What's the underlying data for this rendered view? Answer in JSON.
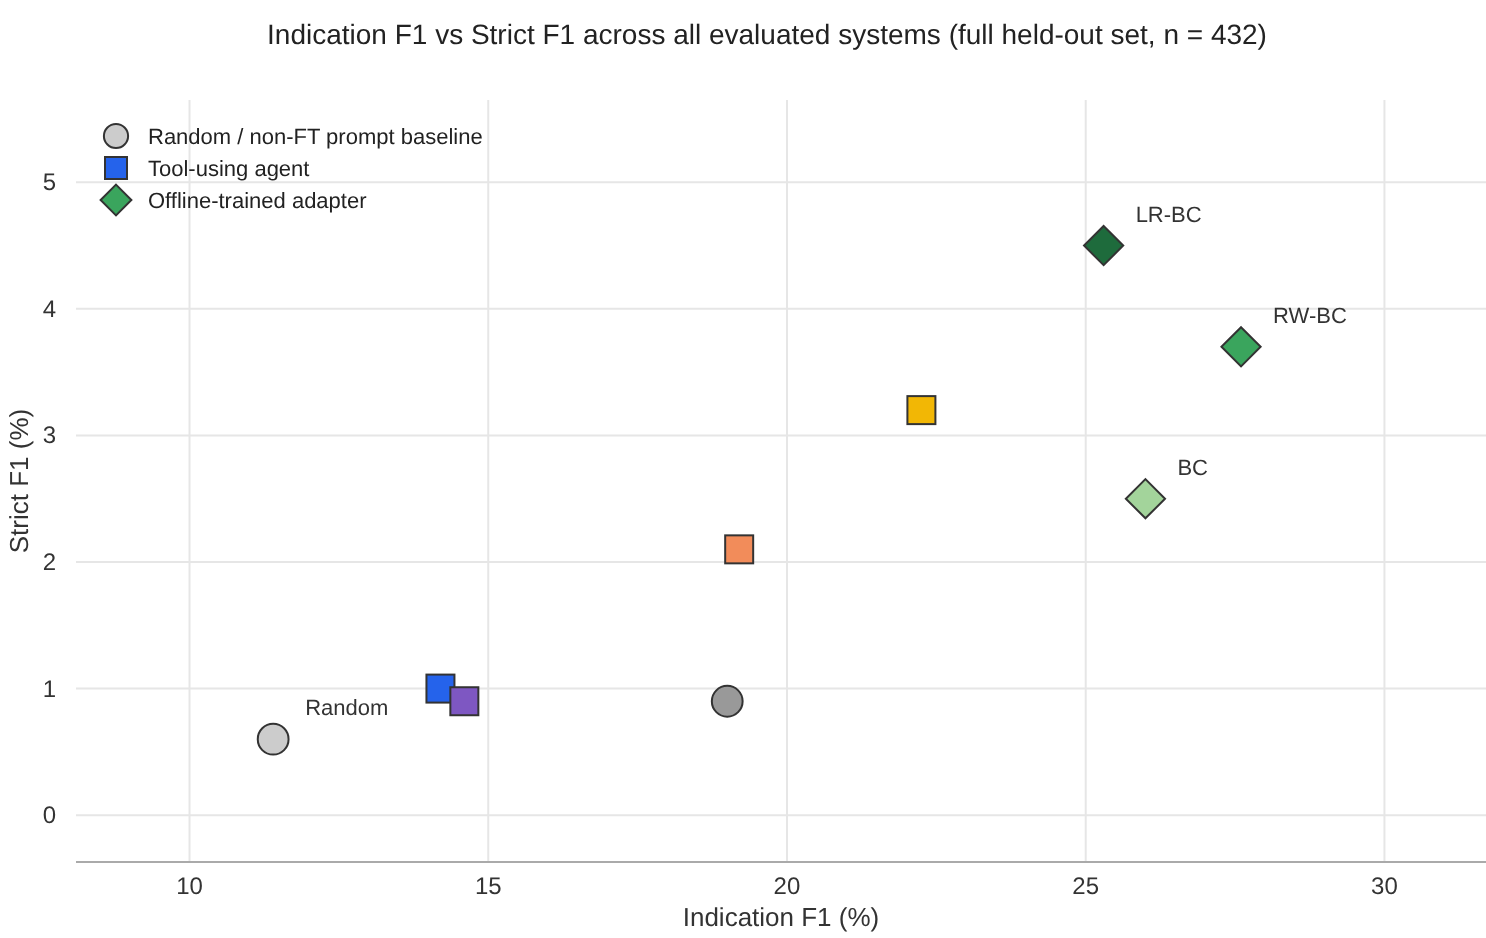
{
  "chart_data": {
    "type": "scatter",
    "title": "Indication F1 vs Strict F1 across all evaluated systems (full held-out set, n = 432)",
    "xlabel": "Indication F1 (%)",
    "ylabel": "Strict F1 (%)",
    "xlim": [
      8.1,
      31.7
    ],
    "ylim": [
      -0.37,
      5.65
    ],
    "xticks": [
      10,
      15,
      20,
      25,
      30
    ],
    "yticks": [
      0,
      1,
      2,
      3,
      4,
      5
    ],
    "grid": true,
    "legend": "top left",
    "series": [
      {
        "name": "Random / non-FT prompt baseline",
        "color": "#cccccc",
        "marker": "circle",
        "x": [
          11.4,
          19.0
        ],
        "values": [
          0.6,
          0.9
        ],
        "colors": [
          "#cccccc",
          "#999999"
        ]
      },
      {
        "name": "Tool-using agent",
        "color": "#2563eb",
        "marker": "square",
        "x": [
          14.2,
          14.6,
          19.2,
          22.25
        ],
        "values": [
          1.0,
          0.9,
          2.1,
          3.2
        ],
        "colors": [
          "#2563eb",
          "#7e57c2",
          "#f28c5a",
          "#f2b705"
        ]
      },
      {
        "name": "Offline-trained adapter",
        "color": "#3aa55d",
        "marker": "diamond",
        "x": [
          25.3,
          27.6,
          26.0
        ],
        "values": [
          4.5,
          3.7,
          2.5
        ],
        "colors": [
          "#1e6b3c",
          "#3aa55d",
          "#a3d49b"
        ]
      }
    ],
    "annotations": [
      {
        "text": "Random",
        "x": 11.4,
        "y": 0.6
      },
      {
        "text": "LR-BC",
        "x": 25.3,
        "y": 4.5
      },
      {
        "text": "RW-BC",
        "x": 27.6,
        "y": 3.7
      },
      {
        "text": "BC",
        "x": 26.0,
        "y": 2.5
      }
    ]
  }
}
